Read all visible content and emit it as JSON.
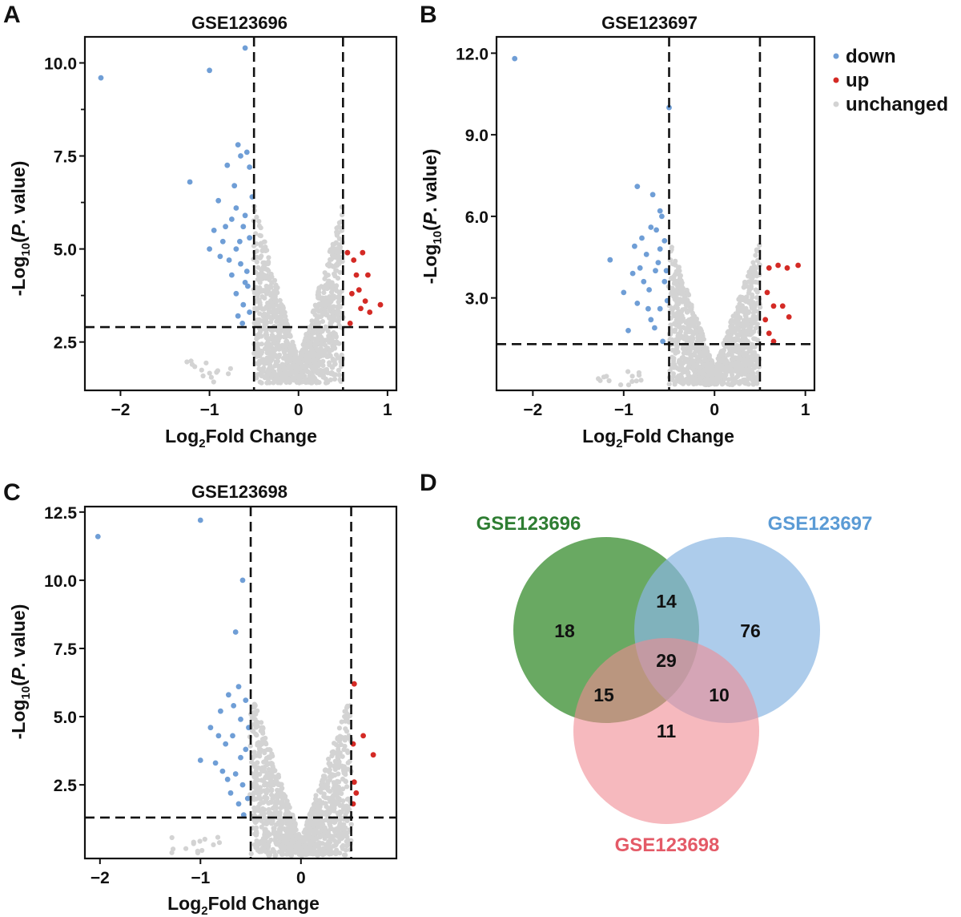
{
  "panels": {
    "A": "A",
    "B": "B",
    "C": "C",
    "D": "D"
  },
  "legend": {
    "items": [
      {
        "label": "down",
        "color": "#6f9ed6"
      },
      {
        "label": "up",
        "color": "#d42a25"
      },
      {
        "label": "unchanged",
        "color": "#d3d3d3"
      }
    ]
  },
  "chart_data": [
    {
      "type": "scatter",
      "panel": "A",
      "title": "GSE123696",
      "xlabel_main": "Log",
      "xlabel_sub": "2",
      "xlabel_rest": "Fold Change",
      "ylabel_main": "-Log",
      "ylabel_sub": "10",
      "ylabel_open": "(",
      "ylabel_italic": "P",
      "ylabel_rest": ". value)",
      "xlim": [
        -2.4,
        1.1
      ],
      "ylim": [
        1.2,
        10.7
      ],
      "xticks": [
        -2,
        -1,
        0,
        1
      ],
      "xtick_labels": [
        "−2",
        "−1",
        "0",
        "1"
      ],
      "yticks": [
        2.5,
        5.0,
        7.5,
        10.0
      ],
      "ytick_labels": [
        "2.5",
        "5.0",
        "7.5",
        "10.0"
      ],
      "yminor_ticks": [
        3.75,
        6.25,
        8.75
      ],
      "vlines": [
        -0.5,
        0.5
      ],
      "hline": 2.9,
      "down": [
        [
          -2.22,
          9.6
        ],
        [
          -0.6,
          10.4
        ],
        [
          -1.0,
          9.8
        ],
        [
          -1.22,
          6.8
        ],
        [
          -0.58,
          7.6
        ],
        [
          -0.68,
          7.8
        ],
        [
          -0.65,
          7.5
        ],
        [
          -0.8,
          7.25
        ],
        [
          -0.55,
          7.2
        ],
        [
          -0.7,
          6.1
        ],
        [
          -0.75,
          5.8
        ],
        [
          -0.6,
          5.9
        ],
        [
          -0.72,
          6.7
        ],
        [
          -0.95,
          5.5
        ],
        [
          -1.0,
          5.0
        ],
        [
          -0.85,
          5.2
        ],
        [
          -0.62,
          5.6
        ],
        [
          -0.55,
          5.3
        ],
        [
          -0.7,
          5.0
        ],
        [
          -0.65,
          4.6
        ],
        [
          -0.78,
          4.7
        ],
        [
          -0.58,
          4.4
        ],
        [
          -0.88,
          4.8
        ],
        [
          -0.6,
          4.1
        ],
        [
          -0.7,
          3.8
        ],
        [
          -0.62,
          3.5
        ],
        [
          -0.55,
          3.3
        ],
        [
          -0.68,
          3.2
        ],
        [
          -0.75,
          4.3
        ],
        [
          -0.82,
          5.6
        ],
        [
          -0.52,
          6.4
        ],
        [
          -0.9,
          6.3
        ],
        [
          -0.57,
          4.0
        ],
        [
          -0.63,
          3.0
        ],
        [
          -0.66,
          5.2
        ]
      ],
      "up": [
        [
          0.55,
          4.9
        ],
        [
          0.58,
          3.0
        ],
        [
          0.62,
          4.7
        ],
        [
          0.65,
          4.3
        ],
        [
          0.68,
          3.9
        ],
        [
          0.7,
          3.4
        ],
        [
          0.72,
          4.9
        ],
        [
          0.75,
          3.6
        ],
        [
          0.78,
          4.3
        ],
        [
          0.8,
          3.3
        ],
        [
          0.92,
          3.5
        ],
        [
          0.6,
          3.8
        ]
      ],
      "unchanged": {
        "xmax": 0.5,
        "peak": 6.0,
        "depth": 1.4,
        "count": 1100
      }
    },
    {
      "type": "scatter",
      "panel": "B",
      "title": "GSE123697",
      "xlabel_main": "Log",
      "xlabel_sub": "2",
      "xlabel_rest": "Fold Change",
      "ylabel_main": "-Log",
      "ylabel_sub": "10",
      "ylabel_open": "(",
      "ylabel_italic": "P",
      "ylabel_rest": ". value)",
      "xlim": [
        -2.4,
        1.1
      ],
      "ylim": [
        -0.4,
        12.6
      ],
      "xticks": [
        -2,
        -1,
        0,
        1
      ],
      "xtick_labels": [
        "−2",
        "−1",
        "0",
        "1"
      ],
      "yticks": [
        3.0,
        6.0,
        9.0,
        12.0
      ],
      "ytick_labels": [
        "3.0",
        "6.0",
        "9.0",
        "12.0"
      ],
      "yminor_ticks": [],
      "vlines": [
        -0.5,
        0.5
      ],
      "hline": 1.3,
      "down": [
        [
          -2.2,
          11.8
        ],
        [
          -0.5,
          10.0
        ],
        [
          -0.85,
          7.1
        ],
        [
          -0.68,
          6.8
        ],
        [
          -0.6,
          6.2
        ],
        [
          -0.7,
          5.6
        ],
        [
          -0.8,
          5.2
        ],
        [
          -0.75,
          4.6
        ],
        [
          -0.6,
          4.8
        ],
        [
          -1.15,
          4.4
        ],
        [
          -0.65,
          4.0
        ],
        [
          -0.9,
          3.9
        ],
        [
          -0.55,
          3.6
        ],
        [
          -0.72,
          3.3
        ],
        [
          -0.85,
          2.8
        ],
        [
          -0.6,
          2.6
        ],
        [
          -0.7,
          2.2
        ],
        [
          -0.95,
          1.8
        ],
        [
          -0.55,
          5.1
        ],
        [
          -0.62,
          4.3
        ],
        [
          -0.78,
          3.6
        ],
        [
          -0.52,
          2.9
        ],
        [
          -0.57,
          1.4
        ],
        [
          -0.66,
          1.9
        ],
        [
          -1.0,
          3.2
        ],
        [
          -0.88,
          4.9
        ],
        [
          -0.58,
          6.0
        ],
        [
          -0.73,
          2.6
        ],
        [
          -0.53,
          4.0
        ],
        [
          -0.64,
          5.5
        ],
        [
          -0.82,
          4.1
        ]
      ],
      "up": [
        [
          0.6,
          4.1
        ],
        [
          0.7,
          4.2
        ],
        [
          0.8,
          4.1
        ],
        [
          0.92,
          4.2
        ],
        [
          0.58,
          3.2
        ],
        [
          0.65,
          2.7
        ],
        [
          0.75,
          2.7
        ],
        [
          0.82,
          2.3
        ],
        [
          0.6,
          1.7
        ],
        [
          0.65,
          1.4
        ],
        [
          0.56,
          2.2
        ]
      ],
      "unchanged": {
        "xmax": 0.5,
        "peak": 5.0,
        "depth": -0.2,
        "count": 1100
      }
    },
    {
      "type": "scatter",
      "panel": "C",
      "title": "GSE123698",
      "xlabel_main": "Log",
      "xlabel_sub": "2",
      "xlabel_rest": "Fold Change",
      "ylabel_main": "-Log",
      "ylabel_sub": "10",
      "ylabel_open": "(",
      "ylabel_italic": "P",
      "ylabel_rest": ". value)",
      "xlim": [
        -2.15,
        0.95
      ],
      "ylim": [
        -0.2,
        12.7
      ],
      "xticks": [
        -2,
        -1,
        0
      ],
      "xtick_labels": [
        "−2",
        "−1",
        "0"
      ],
      "yticks": [
        2.5,
        5.0,
        7.5,
        10.0,
        12.5
      ],
      "ytick_labels": [
        "2.5",
        "5.0",
        "7.5",
        "10.0",
        "12.5"
      ],
      "yminor_ticks": [],
      "vlines": [
        -0.5,
        0.5
      ],
      "hline": 1.3,
      "down": [
        [
          -2.02,
          11.6
        ],
        [
          -1.0,
          12.2
        ],
        [
          -0.58,
          10.0
        ],
        [
          -0.65,
          8.1
        ],
        [
          -0.62,
          6.1
        ],
        [
          -0.72,
          5.8
        ],
        [
          -0.55,
          5.6
        ],
        [
          -0.8,
          5.2
        ],
        [
          -0.6,
          4.9
        ],
        [
          -0.9,
          4.6
        ],
        [
          -0.68,
          4.3
        ],
        [
          -0.75,
          4.0
        ],
        [
          -0.55,
          3.8
        ],
        [
          -1.0,
          3.4
        ],
        [
          -0.85,
          3.3
        ],
        [
          -0.65,
          2.9
        ],
        [
          -0.58,
          2.5
        ],
        [
          -0.7,
          2.2
        ],
        [
          -0.62,
          1.8
        ],
        [
          -0.57,
          1.4
        ],
        [
          -0.78,
          3.0
        ],
        [
          -0.52,
          4.6
        ],
        [
          -0.67,
          5.4
        ],
        [
          -0.82,
          4.3
        ],
        [
          -0.6,
          3.5
        ],
        [
          -0.73,
          2.7
        ],
        [
          -0.53,
          2.0
        ]
      ],
      "up": [
        [
          0.53,
          6.2
        ],
        [
          0.52,
          4.0
        ],
        [
          0.62,
          4.3
        ],
        [
          0.72,
          3.6
        ],
        [
          0.53,
          2.6
        ],
        [
          0.55,
          2.2
        ],
        [
          0.52,
          1.8
        ]
      ],
      "unchanged": {
        "xmax": 0.5,
        "peak": 5.8,
        "depth": -0.1,
        "count": 1100
      }
    },
    {
      "type": "venn",
      "panel": "D",
      "sets": [
        {
          "label": "GSE123696",
          "color": "#2e7d32",
          "fill": "#4f9a47"
        },
        {
          "label": "GSE123697",
          "color": "#5b9bd5",
          "fill": "#8ab6e2"
        },
        {
          "label": "GSE123698",
          "color": "#e45a67",
          "fill": "#f08a92"
        }
      ],
      "regions": {
        "only_696": 18,
        "only_697": 76,
        "only_698": 11,
        "696_697": 14,
        "696_698": 15,
        "697_698": 10,
        "all": 29
      }
    }
  ]
}
